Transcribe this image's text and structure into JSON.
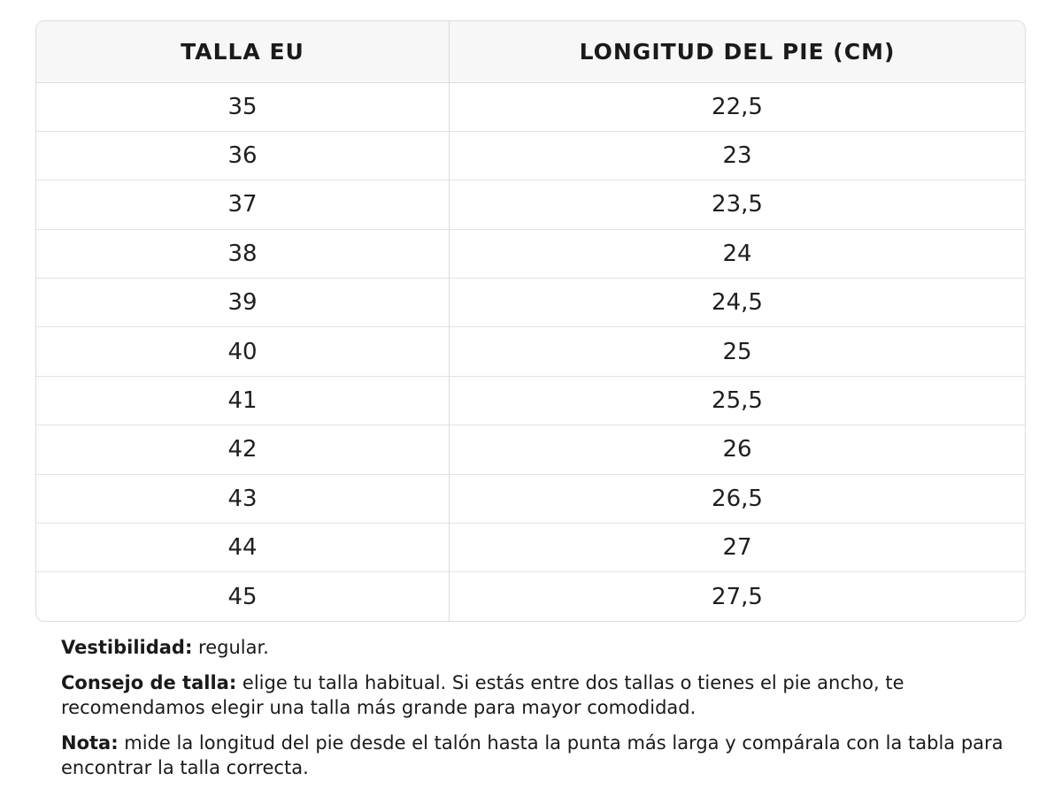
{
  "table": {
    "headers": {
      "size": "TALLA EU",
      "length": "LONGITUD DEL PIE (CM)"
    },
    "rows": [
      {
        "size": "35",
        "length": "22,5"
      },
      {
        "size": "36",
        "length": "23"
      },
      {
        "size": "37",
        "length": "23,5"
      },
      {
        "size": "38",
        "length": "24"
      },
      {
        "size": "39",
        "length": "24,5"
      },
      {
        "size": "40",
        "length": "25"
      },
      {
        "size": "41",
        "length": "25,5"
      },
      {
        "size": "42",
        "length": "26"
      },
      {
        "size": "43",
        "length": "26,5"
      },
      {
        "size": "44",
        "length": "27"
      },
      {
        "size": "45",
        "length": "27,5"
      }
    ]
  },
  "notes": {
    "fit": {
      "label": "Vestibilidad:",
      "text": " regular."
    },
    "advice": {
      "label": "Consejo de talla:",
      "text": " elige tu talla habitual. Si estás entre dos tallas o tienes el pie ancho, te recomendamos elegir una talla más grande para mayor comodidad."
    },
    "note": {
      "label": "Nota:",
      "text": " mide la longitud del pie desde el talón hasta la punta más larga y compárala con la tabla para encontrar la talla correcta."
    }
  }
}
